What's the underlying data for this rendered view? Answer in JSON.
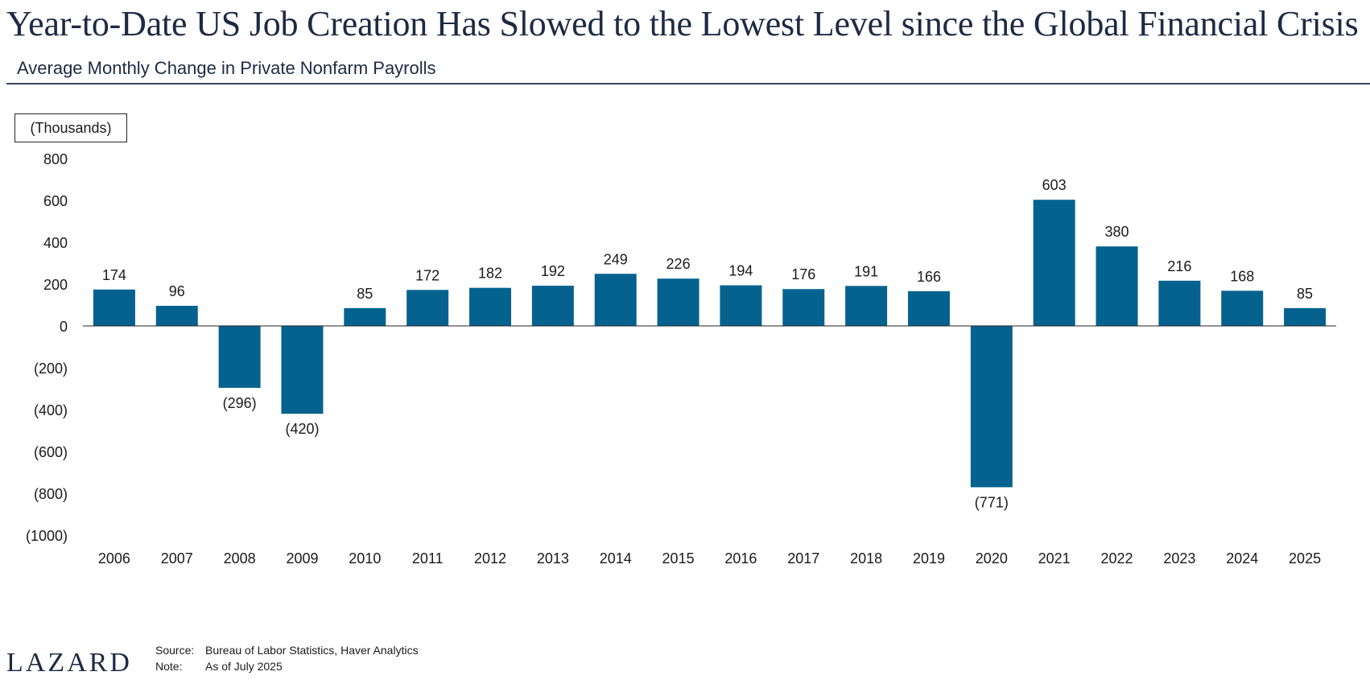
{
  "header": {
    "title": "Year-to-Date US Job Creation Has Slowed to the Lowest Level since the Global Financial Crisis",
    "subtitle": "Average Monthly Change in Private Nonfarm Payrolls"
  },
  "chart_data": {
    "type": "bar",
    "unit_label": "(Thousands)",
    "categories": [
      "2006",
      "2007",
      "2008",
      "2009",
      "2010",
      "2011",
      "2012",
      "2013",
      "2014",
      "2015",
      "2016",
      "2017",
      "2018",
      "2019",
      "2020",
      "2021",
      "2022",
      "2023",
      "2024",
      "2025"
    ],
    "values": [
      174,
      96,
      -296,
      -420,
      85,
      172,
      182,
      192,
      249,
      226,
      194,
      176,
      191,
      166,
      -771,
      603,
      380,
      216,
      168,
      85
    ],
    "data_labels": [
      "174",
      "96",
      "(296)",
      "(420)",
      "85",
      "172",
      "182",
      "192",
      "249",
      "226",
      "194",
      "176",
      "191",
      "166",
      "(771)",
      "603",
      "380",
      "216",
      "168",
      "85"
    ],
    "ylim": [
      -1000,
      800
    ],
    "yticks": [
      800,
      600,
      400,
      200,
      0,
      -200,
      -400,
      -600,
      -800,
      -1000
    ],
    "ytick_labels": [
      "800",
      "600",
      "400",
      "200",
      "0",
      "(200)",
      "(400)",
      "(600)",
      "(800)",
      "(1000)"
    ],
    "bar_color": "#05628f",
    "grid": false
  },
  "footer": {
    "logo": "LAZARD",
    "source_key": "Source:",
    "source_text": "Bureau of Labor Statistics, Haver Analytics",
    "note_key": "Note:",
    "note_text": "As of July 2025"
  }
}
